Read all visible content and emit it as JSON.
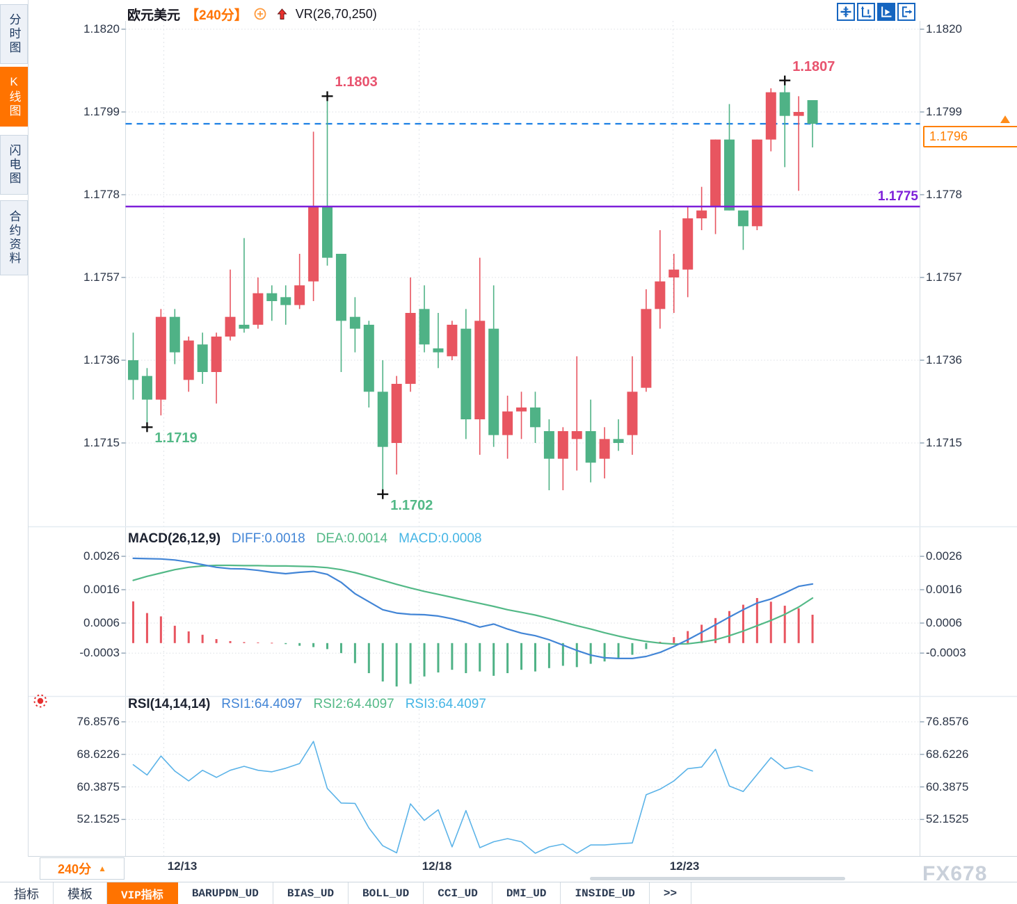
{
  "header": {
    "symbol": "欧元美元",
    "period": "【240分】",
    "plus_icon": "circle-plus",
    "indicator": "VR(26,70,250)"
  },
  "toolbar": {
    "icons": [
      {
        "name": "pan-crosshair-icon",
        "active": false
      },
      {
        "name": "axis-scale-icon",
        "active": false
      },
      {
        "name": "play-axis-icon",
        "active": true
      },
      {
        "name": "jump-latest-icon",
        "active": false
      }
    ]
  },
  "sidebar": {
    "items": [
      {
        "label": "分时图",
        "active": false
      },
      {
        "label": "K线图",
        "active": true
      },
      {
        "label": "闪电图",
        "active": false
      },
      {
        "label": "合约资料",
        "active": false
      }
    ]
  },
  "colors": {
    "up": "#e85560",
    "down": "#4fb286",
    "accent_orange": "#ff7300",
    "support_purple": "#7d1fd9",
    "dashed_blue": "#1b7fe4",
    "diff_blue": "#4285d6",
    "dea_green": "#53b987",
    "macd_cyan": "#45b5e5",
    "rsi_blue": "#5bb3e8"
  },
  "overlays": {
    "support_line": {
      "label": "1.1775",
      "value": 1.1775
    },
    "last_price_line": {
      "value": 1.1796
    },
    "price_marker": {
      "value": "1.1796"
    }
  },
  "chart_data": [
    {
      "type": "candlestick",
      "title": "欧元美元 240分 K线图",
      "ylim": [
        1.1694,
        1.1822
      ],
      "yticks": [
        1.182,
        1.1799,
        1.1778,
        1.1757,
        1.1736,
        1.1715
      ],
      "xticks": [
        "12/13",
        "12/18",
        "12/23"
      ],
      "color_convention": "red=up green=down",
      "candles": [
        [
          1.1736,
          1.1743,
          1.1726,
          1.1731
        ],
        [
          1.1732,
          1.1734,
          1.1719,
          1.1726
        ],
        [
          1.1726,
          1.1749,
          1.1722,
          1.1747
        ],
        [
          1.1747,
          1.1749,
          1.1735,
          1.1738
        ],
        [
          1.1731,
          1.1742,
          1.1728,
          1.1741
        ],
        [
          1.174,
          1.1743,
          1.173,
          1.1733
        ],
        [
          1.1733,
          1.1743,
          1.1725,
          1.1742
        ],
        [
          1.1742,
          1.1759,
          1.1741,
          1.1747
        ],
        [
          1.1745,
          1.1767,
          1.1743,
          1.1744
        ],
        [
          1.1745,
          1.1757,
          1.1744,
          1.1753
        ],
        [
          1.1753,
          1.1755,
          1.1746,
          1.1751
        ],
        [
          1.1752,
          1.1755,
          1.1745,
          1.175
        ],
        [
          1.175,
          1.1763,
          1.1749,
          1.1755
        ],
        [
          1.1756,
          1.1794,
          1.1751,
          1.1775
        ],
        [
          1.1775,
          1.1803,
          1.176,
          1.1762
        ],
        [
          1.1763,
          1.1763,
          1.1733,
          1.1746
        ],
        [
          1.1747,
          1.1752,
          1.1738,
          1.1744
        ],
        [
          1.1745,
          1.1746,
          1.1724,
          1.1728
        ],
        [
          1.1728,
          1.1736,
          1.1702,
          1.1714
        ],
        [
          1.1715,
          1.1732,
          1.1707,
          1.173
        ],
        [
          1.173,
          1.1757,
          1.1728,
          1.1748
        ],
        [
          1.1749,
          1.1755,
          1.1738,
          1.174
        ],
        [
          1.1739,
          1.1748,
          1.1734,
          1.1738
        ],
        [
          1.1737,
          1.1746,
          1.1736,
          1.1745
        ],
        [
          1.1744,
          1.1749,
          1.1716,
          1.1721
        ],
        [
          1.1721,
          1.1762,
          1.1712,
          1.1746
        ],
        [
          1.1744,
          1.1755,
          1.1714,
          1.1717
        ],
        [
          1.1717,
          1.1727,
          1.1711,
          1.1723
        ],
        [
          1.1723,
          1.1728,
          1.1716,
          1.1724
        ],
        [
          1.1724,
          1.1728,
          1.1715,
          1.1719
        ],
        [
          1.1718,
          1.1721,
          1.1703,
          1.1711
        ],
        [
          1.1711,
          1.1719,
          1.1703,
          1.1718
        ],
        [
          1.1716,
          1.1737,
          1.1708,
          1.1718
        ],
        [
          1.1718,
          1.1726,
          1.1705,
          1.171
        ],
        [
          1.1711,
          1.1719,
          1.1706,
          1.1716
        ],
        [
          1.1716,
          1.1721,
          1.1713,
          1.1715
        ],
        [
          1.1717,
          1.1737,
          1.1712,
          1.1728
        ],
        [
          1.1729,
          1.1754,
          1.1728,
          1.1749
        ],
        [
          1.1749,
          1.1769,
          1.1744,
          1.1756
        ],
        [
          1.1757,
          1.1763,
          1.1748,
          1.1759
        ],
        [
          1.1759,
          1.1775,
          1.1752,
          1.1772
        ],
        [
          1.1772,
          1.178,
          1.1769,
          1.1774
        ],
        [
          1.1775,
          1.1792,
          1.1768,
          1.1792
        ],
        [
          1.1792,
          1.1801,
          1.1774,
          1.1774
        ],
        [
          1.1774,
          1.1774,
          1.1764,
          1.177
        ],
        [
          1.177,
          1.1792,
          1.1769,
          1.1792
        ],
        [
          1.1792,
          1.1805,
          1.1789,
          1.1804
        ],
        [
          1.1804,
          1.1807,
          1.1785,
          1.1798
        ],
        [
          1.1798,
          1.1803,
          1.1779,
          1.1799
        ],
        [
          1.1802,
          1.1802,
          1.179,
          1.1796
        ]
      ],
      "annotations": [
        {
          "text": "1.1719",
          "candle": 1,
          "at": "low",
          "color": "#53b987",
          "cross": true
        },
        {
          "text": "1.1803",
          "candle": 14,
          "at": "high",
          "color": "#e8536e",
          "cross": true
        },
        {
          "text": "1.1702",
          "candle": 18,
          "at": "low",
          "color": "#53b987",
          "cross": true
        },
        {
          "text": "1.1807",
          "candle": 47,
          "at": "high",
          "color": "#e8536e",
          "cross": true
        }
      ]
    },
    {
      "type": "bar",
      "labels": {
        "name": "MACD(26,12,9)",
        "diff": "DIFF:0.0018",
        "dea": "DEA:0.0014",
        "macd": "MACD:0.0008"
      },
      "yticks": [
        0.0026,
        0.0016,
        0.0006,
        -0.0003
      ],
      "series": [
        {
          "name": "DIFF",
          "values": [
            0.00254,
            0.00253,
            0.00252,
            0.00249,
            0.00243,
            0.00235,
            0.00227,
            0.00223,
            0.00222,
            0.00218,
            0.00212,
            0.00208,
            0.00212,
            0.00215,
            0.00206,
            0.00182,
            0.00148,
            0.00124,
            0.001,
            0.0009,
            0.00086,
            0.00085,
            0.00081,
            0.00073,
            0.00062,
            0.00048,
            0.00057,
            0.00042,
            0.0003,
            0.00022,
            0.0001,
            -6e-05,
            -0.00022,
            -0.00036,
            -0.00044,
            -0.00046,
            -0.00046,
            -0.0004,
            -0.00028,
            -0.0001,
            0.0001,
            0.00032,
            0.00055,
            0.00078,
            0.001,
            0.0012,
            0.00132,
            0.0015,
            0.0017,
            0.00177
          ]
        },
        {
          "name": "DEA",
          "values": [
            0.00188,
            0.002,
            0.0021,
            0.0022,
            0.00227,
            0.00231,
            0.00233,
            0.00233,
            0.00232,
            0.00232,
            0.00231,
            0.00231,
            0.0023,
            0.00229,
            0.00226,
            0.0022,
            0.00211,
            0.002,
            0.00188,
            0.00176,
            0.00165,
            0.00155,
            0.00146,
            0.00137,
            0.00128,
            0.00119,
            0.0011,
            0.001,
            0.00092,
            0.00084,
            0.00074,
            0.00063,
            0.00052,
            0.00042,
            0.00031,
            0.00021,
            0.00012,
            5e-05,
            0.0,
            -3e-05,
            -2e-05,
            3e-05,
            0.0001,
            0.00022,
            0.00036,
            0.00052,
            0.00068,
            0.00086,
            0.00108,
            0.00135
          ]
        },
        {
          "name": "MACD-histogram",
          "values": [
            0.00125,
            0.0009,
            0.0008,
            0.00052,
            0.00035,
            0.00025,
            0.00012,
            6e-05,
            3e-05,
            2e-05,
            1e-05,
            -3e-05,
            -8e-05,
            -0.00012,
            -0.00018,
            -0.0003,
            -0.0006,
            -0.0009,
            -0.00115,
            -0.0013,
            -0.00122,
            -0.001,
            -0.00088,
            -0.0008,
            -0.0009,
            -0.00085,
            -0.00098,
            -0.0009,
            -0.0008,
            -0.00085,
            -0.00075,
            -0.00068,
            -0.00072,
            -0.00062,
            -0.00055,
            -0.00048,
            -0.00035,
            -0.00018,
            4e-05,
            0.00018,
            0.00036,
            0.00055,
            0.00075,
            0.00096,
            0.00115,
            0.00135,
            0.00124,
            0.00112,
            0.00104,
            0.00085
          ]
        }
      ]
    },
    {
      "type": "line",
      "labels": {
        "name": "RSI(14,14,14)",
        "rsi1": "RSI1:64.4097",
        "rsi2": "RSI2:64.4097",
        "rsi3": "RSI3:64.4097"
      },
      "yticks": [
        76.8576,
        68.6226,
        60.3875,
        52.1525
      ],
      "series": [
        {
          "name": "RSI1",
          "values": [
            66.0,
            63.4,
            68.2,
            64.4,
            61.9,
            64.6,
            62.8,
            64.6,
            65.6,
            64.6,
            64.2,
            65.1,
            66.3,
            71.9,
            60.0,
            56.3,
            56.2,
            50.0,
            45.5,
            43.7,
            56.1,
            51.9,
            54.6,
            45.2,
            54.4,
            45.0,
            46.5,
            47.3,
            46.5,
            43.6,
            45.2,
            45.9,
            43.6,
            45.7,
            45.7,
            46.0,
            46.2,
            58.4,
            59.8,
            61.9,
            65.0,
            65.4,
            69.9,
            60.6,
            59.2,
            63.5,
            67.8,
            65.0,
            65.6,
            64.4
          ]
        }
      ]
    }
  ],
  "bottom": {
    "period_selector": {
      "label": "240分",
      "arrow": "▲"
    },
    "x_labels": [
      "12/13",
      "12/18",
      "12/23"
    ],
    "tabs": [
      {
        "label": "指标",
        "active": false
      },
      {
        "label": "模板",
        "active": false
      },
      {
        "label": "VIP指标",
        "active": true
      },
      {
        "label": "BARUPDN_UD",
        "active": false
      },
      {
        "label": "BIAS_UD",
        "active": false
      },
      {
        "label": "BOLL_UD",
        "active": false
      },
      {
        "label": "CCI_UD",
        "active": false
      },
      {
        "label": "DMI_UD",
        "active": false
      },
      {
        "label": "INSIDE_UD",
        "active": false
      },
      {
        "label": ">>",
        "active": false
      }
    ],
    "watermark": "FX678"
  }
}
